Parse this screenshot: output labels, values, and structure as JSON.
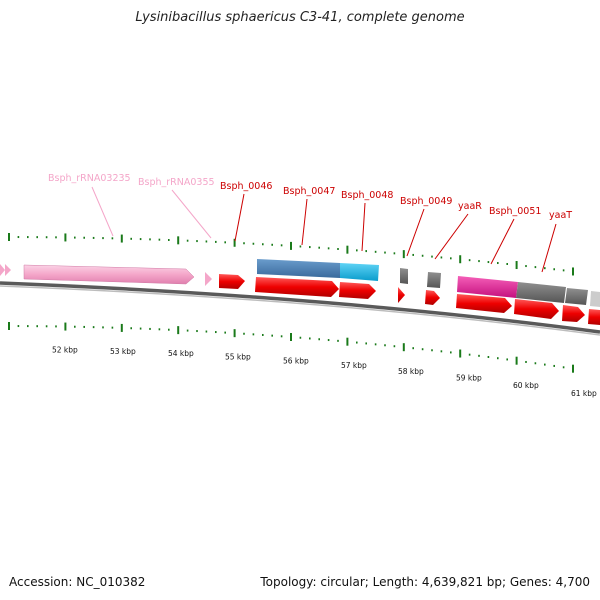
{
  "title": "Lysinibacillus sphaericus C3-41, complete genome",
  "footer": {
    "accession": "Accession: NC_010382",
    "topology": "Topology: circular; Length: 4,639,821 bp; Genes: 4,700"
  },
  "colors": {
    "rrna": "#f4a6c9",
    "gene": "#ee0000",
    "blue": "#4a7fb5",
    "cyan": "#15b9ea",
    "magenta": "#e8199a",
    "gray": "#6e6e6e",
    "lightgray": "#c8c8c8",
    "tick": "#1a7a1a",
    "backbone": "#888888"
  },
  "labels": [
    {
      "text": "Bsph_rRNA03235",
      "type": "rrna"
    },
    {
      "text": "Bsph_rRNA0355",
      "type": "rrna"
    },
    {
      "text": "Bsph_0046",
      "type": "gene"
    },
    {
      "text": "Bsph_0047",
      "type": "gene"
    },
    {
      "text": "Bsph_0048",
      "type": "gene"
    },
    {
      "text": "Bsph_0049",
      "type": "gene"
    },
    {
      "text": "yaaR",
      "type": "gene"
    },
    {
      "text": "Bsph_0051",
      "type": "gene"
    },
    {
      "text": "yaaT",
      "type": "gene"
    }
  ],
  "scale_labels": [
    "52 kbp",
    "53 kbp",
    "54 kbp",
    "55 kbp",
    "56 kbp",
    "57 kbp",
    "58 kbp",
    "59 kbp",
    "60 kbp",
    "61 kbp"
  ]
}
